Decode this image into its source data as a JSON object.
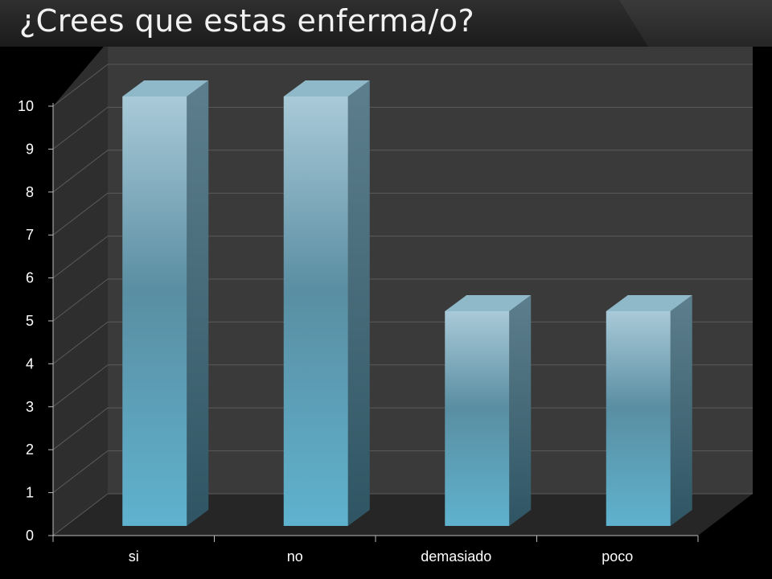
{
  "slide": {
    "title": "¿Crees que estas enferma/o?"
  },
  "chart_data": {
    "type": "bar",
    "style": "3d-clustered-column",
    "categories": [
      "si",
      "no",
      "demasiado",
      "poco"
    ],
    "values": [
      10,
      10,
      5,
      5
    ],
    "title": "",
    "xlabel": "",
    "ylabel": "",
    "ylim": [
      0,
      10
    ],
    "yticks": [
      0,
      1,
      2,
      3,
      4,
      5,
      6,
      7,
      8,
      9,
      10
    ],
    "grid": true,
    "legend": "none",
    "colors": {
      "bar_top": "#8fb8c8",
      "bar_front_top": "#a9cad8",
      "bar_front_bottom": "#5fb0cb",
      "bar_side": "#3d6474",
      "wall": "#3a3a3a",
      "floor": "#262626",
      "grid": "#5a5a5a",
      "text": "#ffffff"
    }
  }
}
